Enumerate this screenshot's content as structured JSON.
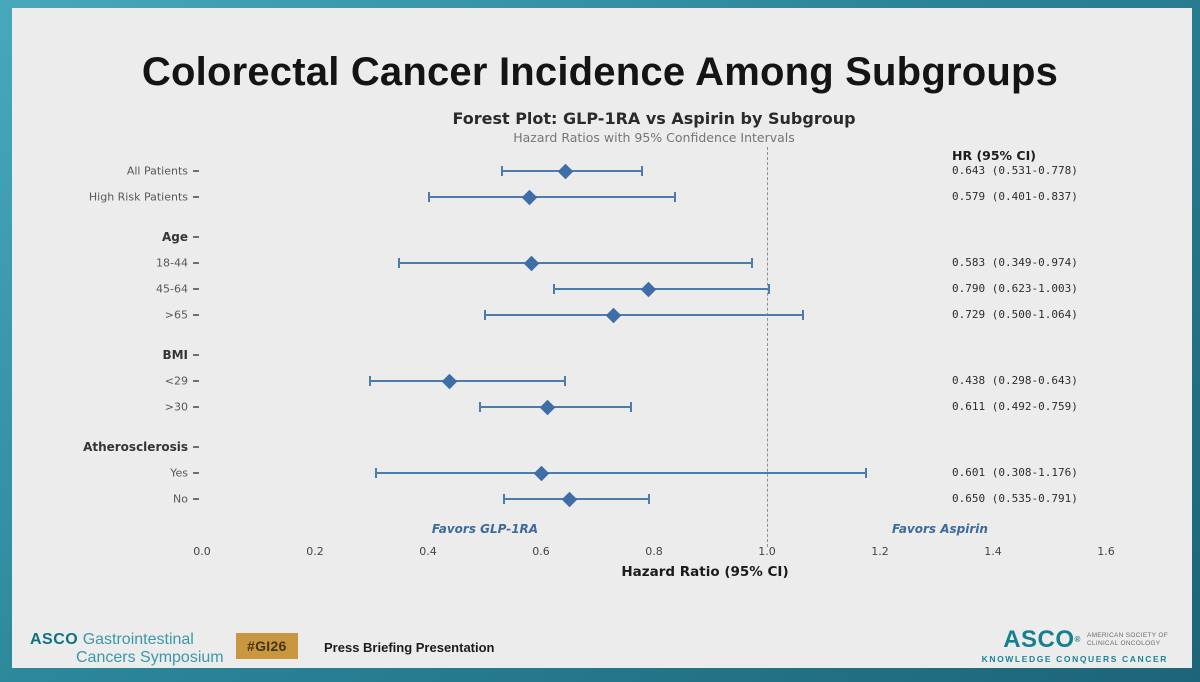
{
  "slide": {
    "title": "Colorectal Cancer Incidence Among Subgroups"
  },
  "chart_data": {
    "type": "forest",
    "title": "Forest Plot: GLP-1RA vs Aspirin by Subgroup",
    "subtitle": "Hazard Ratios with 95% Confidence Intervals",
    "xlabel": "Hazard Ratio (95% CI)",
    "xlim": [
      0.0,
      1.6
    ],
    "xticks": [
      "0.0",
      "0.2",
      "0.4",
      "0.6",
      "0.8",
      "1.0",
      "1.2",
      "1.4",
      "1.6"
    ],
    "reference_line": 1.0,
    "hr_column_header": "HR (95% CI)",
    "favors_left": "Favors GLP-1RA",
    "favors_right": "Favors Aspirin",
    "rows": [
      {
        "label": "All Patients",
        "type": "data",
        "hr": 0.643,
        "ci_low": 0.531,
        "ci_high": 0.778,
        "hr_text": "0.643 (0.531-0.778)"
      },
      {
        "label": "High Risk Patients",
        "type": "data",
        "hr": 0.579,
        "ci_low": 0.401,
        "ci_high": 0.837,
        "hr_text": "0.579 (0.401-0.837)"
      },
      {
        "label": "Age",
        "type": "group"
      },
      {
        "label": "18-44",
        "type": "data",
        "hr": 0.583,
        "ci_low": 0.349,
        "ci_high": 0.974,
        "hr_text": "0.583 (0.349-0.974)"
      },
      {
        "label": "45-64",
        "type": "data",
        "hr": 0.79,
        "ci_low": 0.623,
        "ci_high": 1.003,
        "hr_text": "0.790 (0.623-1.003)"
      },
      {
        "label": ">65",
        "type": "data",
        "hr": 0.729,
        "ci_low": 0.5,
        "ci_high": 1.064,
        "hr_text": "0.729 (0.500-1.064)"
      },
      {
        "label": "BMI",
        "type": "group"
      },
      {
        "label": "<29",
        "type": "data",
        "hr": 0.438,
        "ci_low": 0.298,
        "ci_high": 0.643,
        "hr_text": "0.438 (0.298-0.643)"
      },
      {
        "label": ">30",
        "type": "data",
        "hr": 0.611,
        "ci_low": 0.492,
        "ci_high": 0.759,
        "hr_text": "0.611 (0.492-0.759)"
      },
      {
        "label": "Atherosclerosis",
        "type": "group"
      },
      {
        "label": "Yes",
        "type": "data",
        "hr": 0.601,
        "ci_low": 0.308,
        "ci_high": 1.176,
        "hr_text": "0.601 (0.308-1.176)"
      },
      {
        "label": "No",
        "type": "data",
        "hr": 0.65,
        "ci_low": 0.535,
        "ci_high": 0.791,
        "hr_text": "0.650 (0.535-0.791)"
      }
    ]
  },
  "footer": {
    "symposium": {
      "brand": "ASCO",
      "name_line1": "Gastrointestinal",
      "name_line2": "Cancers Symposium"
    },
    "hashtag": "#GI26",
    "presentation_label": "Press Briefing Presentation",
    "asco": {
      "brand": "ASCO",
      "registered": "®",
      "society_line1": "AMERICAN SOCIETY OF",
      "society_line2": "CLINICAL ONCOLOGY",
      "tagline": "KNOWLEDGE CONQUERS CANCER"
    }
  },
  "colors": {
    "teal": "#1f7f92",
    "gold": "#c9973f",
    "marker_blue": "#3f6ea6",
    "slide_background": "#ececec"
  }
}
